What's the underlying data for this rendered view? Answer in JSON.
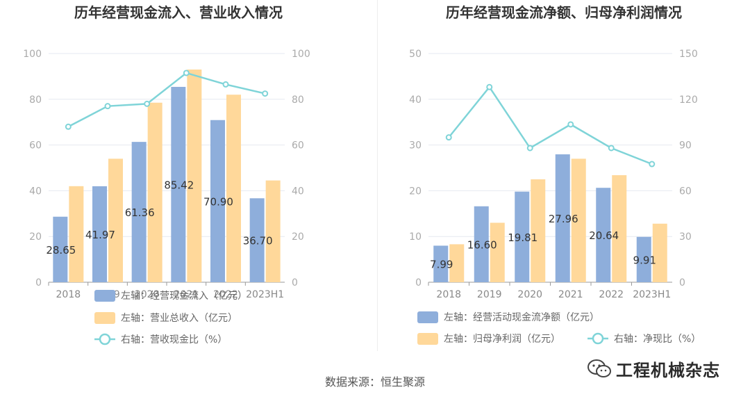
{
  "source": "数据来源：恒生聚源",
  "watermark": {
    "text": "工程机械杂志",
    "icon": "wechat-icon"
  },
  "colors": {
    "bar1": "#8eaedb",
    "bar2": "#ffd89a",
    "line": "#7fd4d8",
    "grid": "#e6e9f0",
    "axis": "#999999",
    "tick": "#aaaaaa",
    "title": "#333333"
  },
  "chart_data": [
    {
      "type": "bar+line",
      "title": "历年经营现金流入、营业收入情况",
      "categories": [
        "2018",
        "2019",
        "2020",
        "2021",
        "2022",
        "2023H1"
      ],
      "left_axis": {
        "min": 0,
        "max": 100,
        "ticks": [
          "0",
          "20",
          "40",
          "60",
          "80",
          "100"
        ]
      },
      "right_axis": {
        "min": 0,
        "max": 100,
        "ticks": [
          "0",
          "20",
          "40",
          "60",
          "80",
          "100"
        ]
      },
      "series": [
        {
          "name": "左轴：经营现金流入（亿元）",
          "type": "bar",
          "axis": "left",
          "values": [
            28.65,
            41.97,
            61.36,
            85.42,
            70.9,
            36.7
          ],
          "labels": [
            "28.65",
            "41.97",
            "61.36",
            "85.42",
            "70.90",
            "36.70"
          ]
        },
        {
          "name": "左轴：营业总收入（亿元）",
          "type": "bar",
          "axis": "left",
          "values": [
            42,
            54,
            78.5,
            93,
            82,
            44.5
          ]
        },
        {
          "name": "右轴：营收现金比（%）",
          "type": "line",
          "axis": "right",
          "values": [
            68,
            77,
            78,
            91.5,
            86.5,
            82.5
          ]
        }
      ]
    },
    {
      "type": "bar+line",
      "title": "历年经营现金流净额、归母净利润情况",
      "categories": [
        "2018",
        "2019",
        "2020",
        "2021",
        "2022",
        "2023H1"
      ],
      "left_axis": {
        "min": 0,
        "max": 50,
        "ticks": [
          "0",
          "10",
          "20",
          "30",
          "40",
          "50"
        ]
      },
      "right_axis": {
        "min": 0,
        "max": 150,
        "ticks": [
          "0",
          "30",
          "60",
          "90",
          "120",
          "150"
        ]
      },
      "series": [
        {
          "name": "左轴：经营活动现金流净额（亿元）",
          "type": "bar",
          "axis": "left",
          "values": [
            7.99,
            16.6,
            19.81,
            27.96,
            20.64,
            9.91
          ],
          "labels": [
            "7.99",
            "16.60",
            "19.81",
            "27.96",
            "20.64",
            "9.91"
          ]
        },
        {
          "name": "左轴：归母净利润（亿元）",
          "type": "bar",
          "axis": "left",
          "values": [
            8.3,
            13,
            22.5,
            27,
            23.4,
            12.8
          ]
        },
        {
          "name": "右轴：净现比（%）",
          "type": "line",
          "axis": "right",
          "values": [
            95,
            128,
            88,
            103.5,
            88,
            77.5
          ]
        }
      ]
    }
  ]
}
